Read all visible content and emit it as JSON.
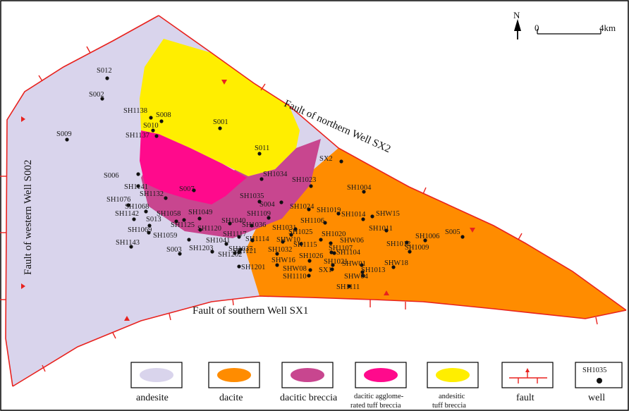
{
  "colors": {
    "andesite": "#d9d4ec",
    "dacite": "#ff8c00",
    "dacitic_breccia": "#c8468f",
    "dacitic_agglomerated_tuff_breccia": "#ff0a8c",
    "andesitic_tuff_breccia": "#ffee00",
    "fault": "#e8221e",
    "well": "#111111"
  },
  "north_arrow": {
    "label": "N",
    "icon": "north-arrow-icon"
  },
  "scale_bar": {
    "start_label": "0",
    "end_label": "4km"
  },
  "faults": {
    "northern": "Fault of northern Well SX2",
    "western": "Fault of western Well S002",
    "southern": "Fault of southern Well SX1"
  },
  "legend": {
    "andesite": "andesite",
    "dacite": "dacite",
    "dacitic_breccia": "dacitic breccia",
    "agglom_line1": "dacitic agglome-",
    "agglom_line2": "rated tuff breccia",
    "andesitic_line1": "andesitic",
    "andesitic_line2": "tuff breccia",
    "fault": "fault",
    "well": "well",
    "well_example": "SH1035"
  },
  "wells": [
    "S012",
    "S002",
    "S009",
    "SH1138",
    "S008",
    "S001",
    "S010",
    "SH1137",
    "S011",
    "SX2",
    "S006",
    "SH1141",
    "SH1132",
    "S007",
    "SH1034",
    "SH1023",
    "SH1004",
    "SH1076",
    "SH1068",
    "SH1035",
    "S004",
    "SH1024",
    "SH1019",
    "SH1014",
    "SHW15",
    "SH1142",
    "SH1058",
    "SH1049",
    "SH1109",
    "SH1106",
    "SH1011",
    "S013",
    "SH1125",
    "SH1040",
    "SH1036",
    "SH1031",
    "SH1069",
    "SH1120",
    "SH1117",
    "SH1025",
    "SH1020",
    "SH1006",
    "S005",
    "SH1059",
    "SH1114",
    "SHW10",
    "SHW06",
    "SH1012",
    "SH1009",
    "SH1143",
    "SH1041",
    "SH1115",
    "SH1107",
    "SH1104",
    "S003",
    "SH1203",
    "SH1202",
    "SH1037",
    "SH1032",
    "SH1026",
    "SH1021",
    "SHW01",
    "SHW18",
    "SH1121",
    "SHW16",
    "SHW08",
    "SX1",
    "SH1013",
    "SH1201",
    "SH1110",
    "SHW04",
    "SH1111"
  ]
}
